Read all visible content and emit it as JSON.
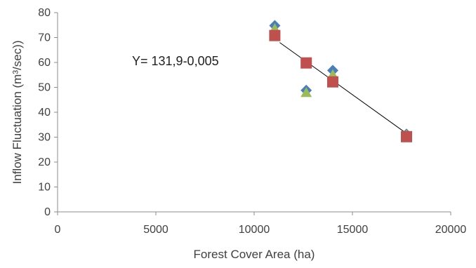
{
  "chart_data": {
    "type": "scatter",
    "title": "",
    "xlabel": "Forest Cover Area (ha)",
    "ylabel": "Inflow Fluctuation (m³/sec))",
    "xlim": [
      0,
      20000
    ],
    "ylim": [
      0,
      80
    ],
    "x_ticks": [
      "0",
      "5000",
      "10000",
      "15000",
      "20000"
    ],
    "y_ticks": [
      "0",
      "10",
      "20",
      "30",
      "40",
      "50",
      "60",
      "70",
      "80"
    ],
    "x_tick_values": [
      0,
      5000,
      10000,
      15000,
      20000
    ],
    "y_tick_values": [
      0,
      10,
      20,
      30,
      40,
      50,
      60,
      70,
      80
    ],
    "grid": false,
    "legend": "none",
    "annotation": "Y= 131,9-0,005",
    "series": [
      {
        "marker": "diamond",
        "color": "#4a7ebb",
        "points": [
          [
            11050,
            74.8
          ],
          [
            12650,
            48.8
          ],
          [
            14000,
            56.8
          ],
          [
            17750,
            31.2
          ]
        ]
      },
      {
        "marker": "triangle",
        "color": "#9bbb59",
        "points": [
          [
            11050,
            73.5
          ],
          [
            12650,
            47.8
          ],
          [
            14000,
            55.0
          ],
          [
            17750,
            30.8
          ]
        ]
      },
      {
        "marker": "square",
        "color": "#c0504d",
        "points": [
          [
            11050,
            70.8
          ],
          [
            12650,
            59.8
          ],
          [
            14000,
            52.2
          ],
          [
            17750,
            30.2
          ]
        ]
      }
    ],
    "trendline": {
      "color": "#000000",
      "points": [
        [
          11300,
          68.0
        ],
        [
          17750,
          31.5
        ]
      ]
    }
  }
}
